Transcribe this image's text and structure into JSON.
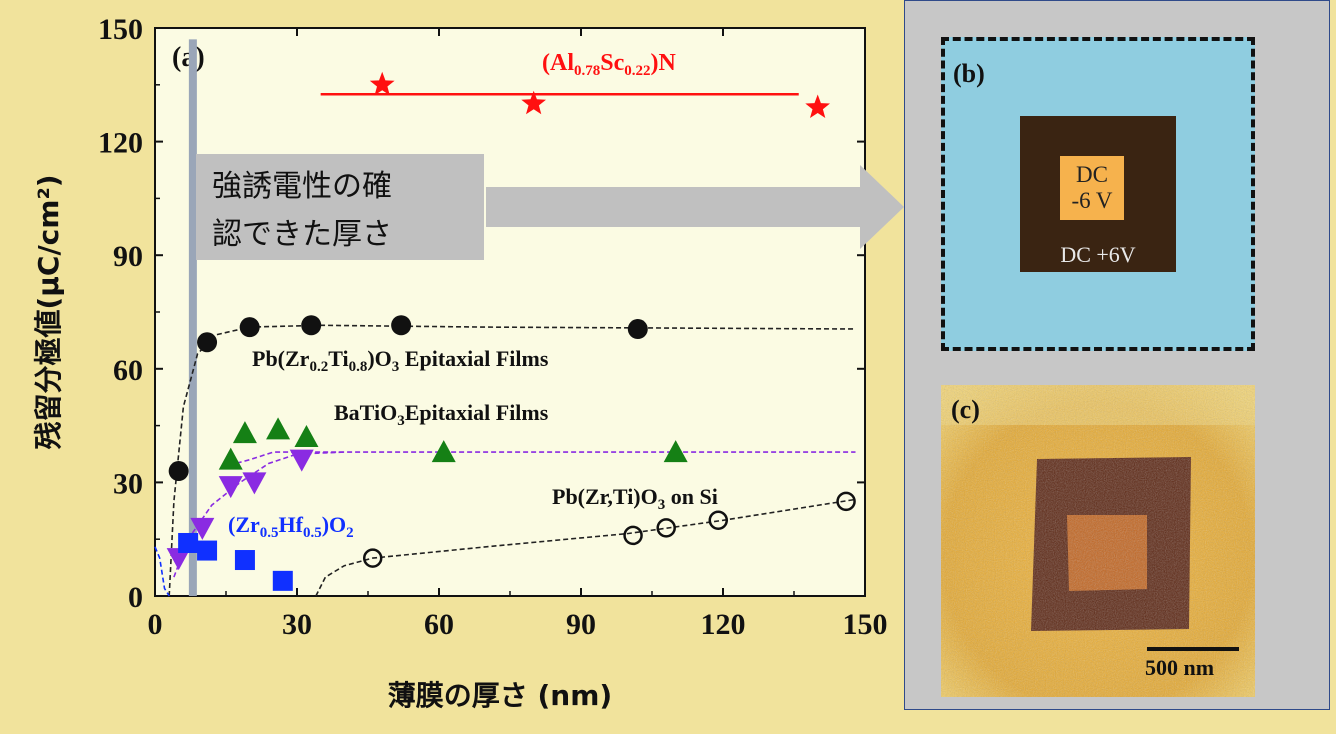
{
  "chart_data": {
    "type": "scatter",
    "panel_label": "(a)",
    "xlabel": "薄膜の厚さ (nm)",
    "ylabel": "残留分極値(μC/cm²)",
    "xlim": [
      0,
      150
    ],
    "ylim": [
      0,
      150
    ],
    "xticks": [
      "0",
      "30",
      "60",
      "90",
      "120",
      "150"
    ],
    "yticks": [
      "0",
      "30",
      "60",
      "90",
      "120",
      "150"
    ],
    "grid": false,
    "series": [
      {
        "name": "(Al0.78Sc0.22)N",
        "label_base": "(Al",
        "label_sub1": "0.78",
        "label_mid": "Sc",
        "label_sub2": "0.22",
        "label_end": ")N",
        "color": "#ff1010",
        "marker": "star",
        "x": [
          48,
          80,
          140
        ],
        "y": [
          135,
          130,
          129
        ]
      },
      {
        "name": "Pb(Zr0.2Ti0.8)O3 Epitaxial Films",
        "label_base": "Pb(Zr",
        "label_sub1": "0.2",
        "label_mid": "Ti",
        "label_sub2": "0.8",
        "label_end": ")O",
        "label_sub3": "3",
        "label_tail": " Epitaxial Films",
        "color": "#111111",
        "marker": "filled-circle",
        "x": [
          5,
          11,
          20,
          33,
          52,
          102
        ],
        "y": [
          33,
          67,
          71,
          71.5,
          71.5,
          70.5
        ]
      },
      {
        "name": "BaTiO3Epitaxial Films",
        "label_base": "BaTiO",
        "label_sub1": "3",
        "label_end": "Epitaxial Films",
        "color": "#158015",
        "marker": "triangle-up",
        "x": [
          16,
          19,
          26,
          32,
          61,
          110
        ],
        "y": [
          36,
          43,
          44,
          42,
          38,
          38
        ]
      },
      {
        "name": "violet-triangle-down",
        "color": "#8a2be2",
        "marker": "triangle-down",
        "x": [
          5,
          10,
          16,
          21,
          31
        ],
        "y": [
          10,
          18,
          29,
          30,
          36
        ]
      },
      {
        "name": "(Zr0.5Hf0.5)O2",
        "label_base": "(Zr",
        "label_sub1": "0.5",
        "label_mid": "Hf",
        "label_sub2": "0.5",
        "label_end": ")O",
        "label_sub3": "2",
        "color": "#1030ff",
        "marker": "square",
        "x": [
          7,
          11,
          19,
          27
        ],
        "y": [
          14,
          12,
          9.5,
          4
        ]
      },
      {
        "name": "Pb(Zr,Ti)O3 on Si",
        "label_base": "Pb(Zr,Ti)O",
        "label_sub1": "3",
        "label_end": " on Si",
        "color": "#111111",
        "marker": "open-circle",
        "x": [
          46,
          101,
          108,
          119,
          146
        ],
        "y": [
          10,
          16,
          18,
          20,
          25
        ]
      }
    ],
    "annotation": {
      "line1": "強誘電性の確",
      "line2": "認できた厚さ",
      "threshold_x": 8
    }
  },
  "panel_b": {
    "label": "(b)",
    "inner_line1": "DC",
    "inner_line2": "-6 V",
    "outer_text": "DC +6V"
  },
  "panel_c": {
    "label": "(c)",
    "scale_bar": "500 nm"
  }
}
